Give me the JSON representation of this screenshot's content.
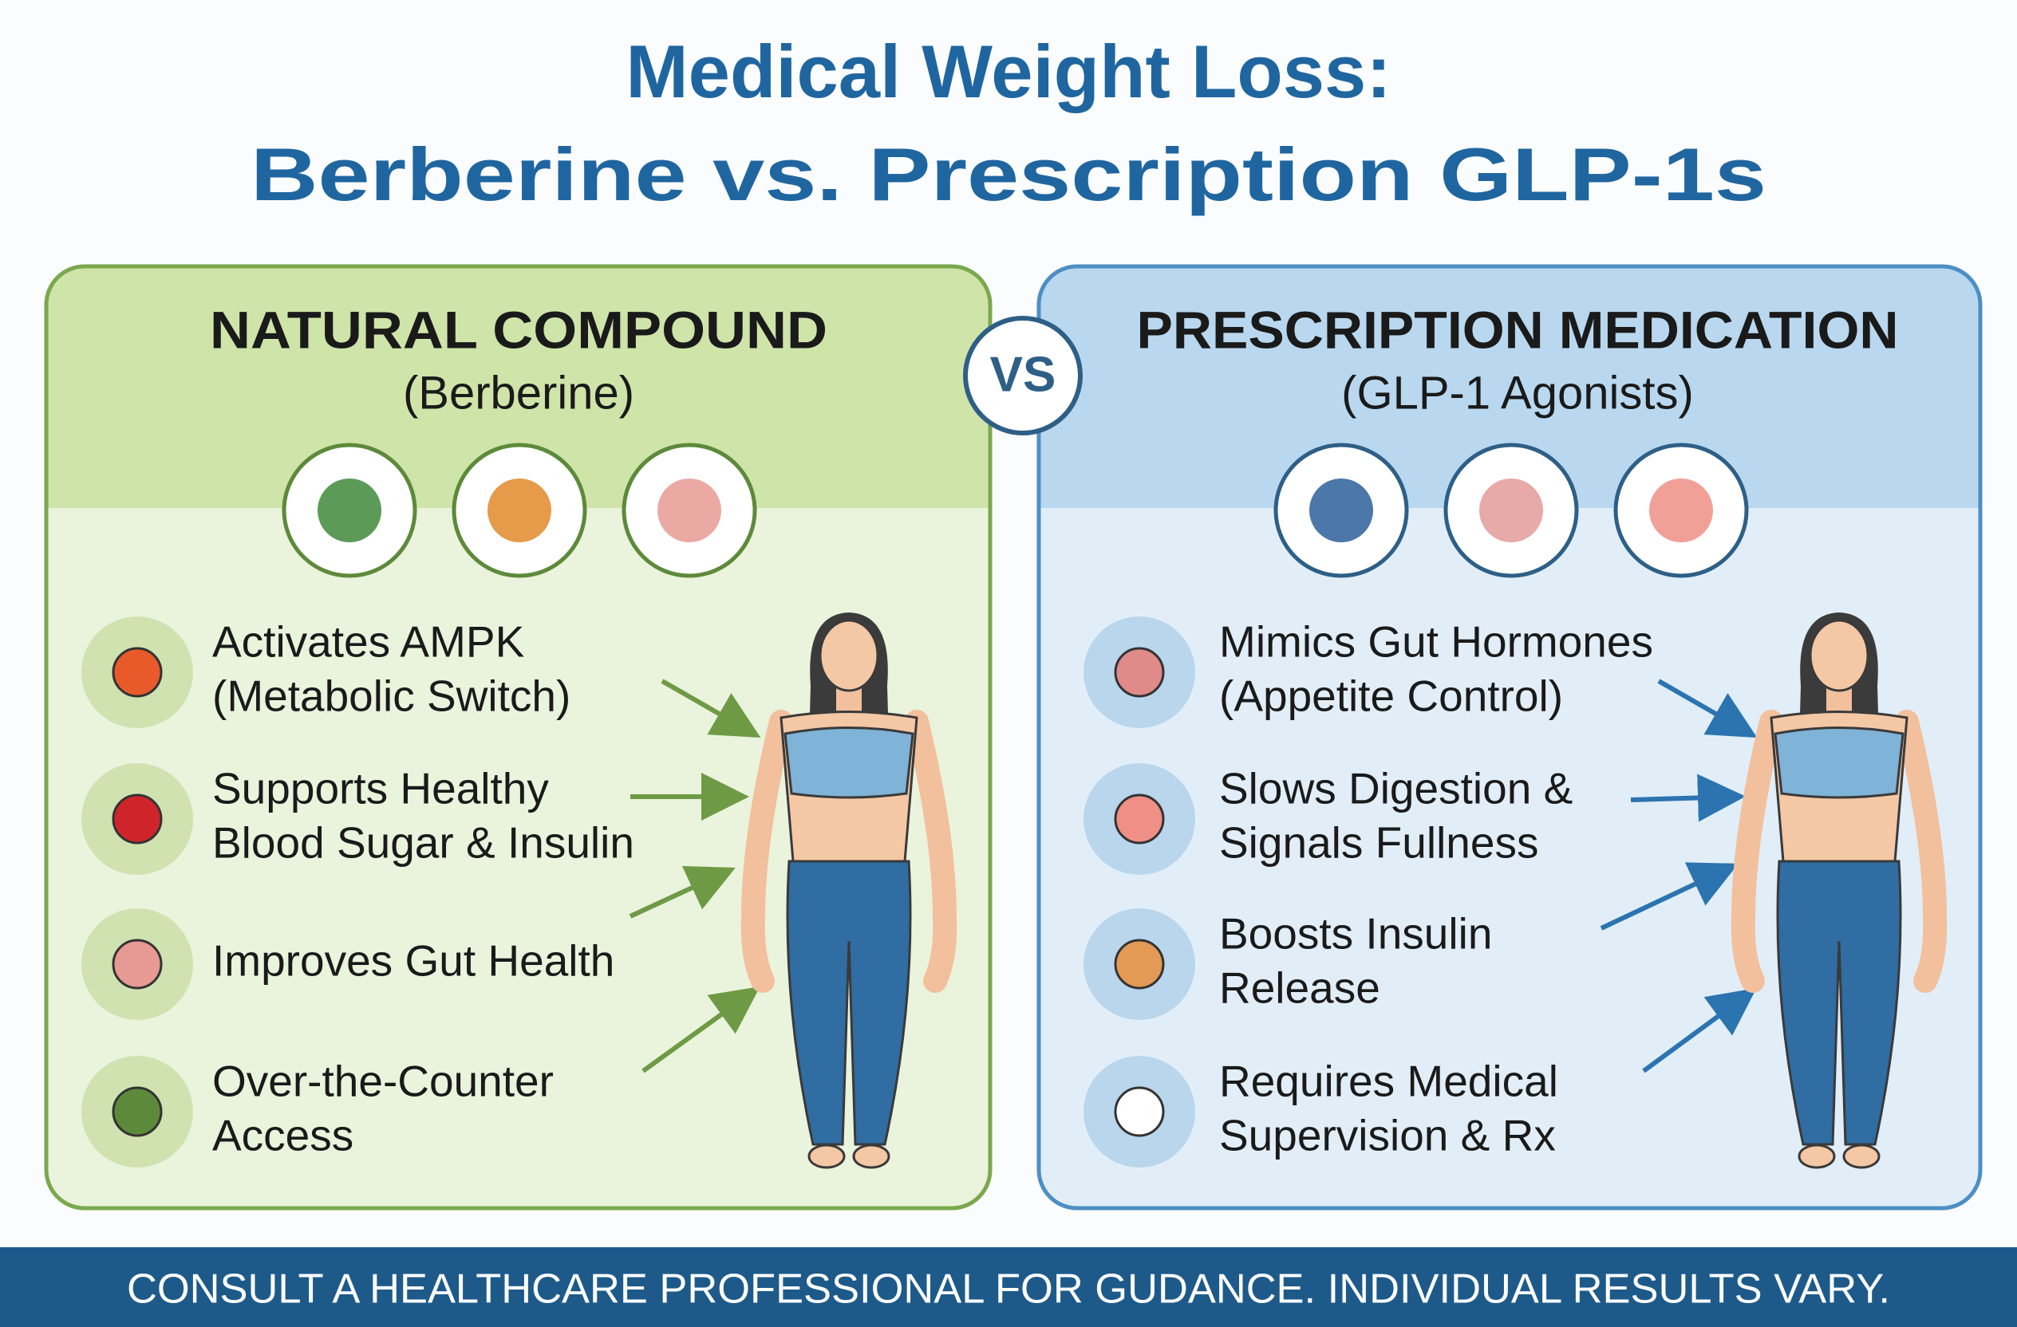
{
  "header": {
    "title_lines": [
      "Medical Weight Loss:",
      "Berberine vs. Prescription GLP-1s"
    ]
  },
  "vs": "VS",
  "panels": [
    {
      "heading": "NATURAL COMPOUND",
      "subheading": "(Berberine)",
      "items": [
        [
          "Activates AMPK",
          "(Metabolic Switch)"
        ],
        [
          "Supports Healthy",
          "Blood Sugar & Insulin"
        ],
        [
          "Improves Gut Health"
        ],
        [
          "Over-the-Counter",
          "Access"
        ]
      ]
    },
    {
      "heading": "PRESCRIPTION MEDICATION",
      "subheading": "(GLP-1 Agonists)",
      "items": [
        [
          "Mimics Gut Hormones",
          "(Appetite Control)"
        ],
        [
          "Slows Digestion &",
          "Signals Fullness"
        ],
        [
          "Boosts Insulin",
          "Release"
        ],
        [
          "Requires Medical",
          "Supervision & Rx"
        ]
      ]
    }
  ],
  "footer": "CONSULT A HEALTHCARE PROFESSIONAL FOR GUDANCE. INDIVIDUAL RESULTS VARY."
}
